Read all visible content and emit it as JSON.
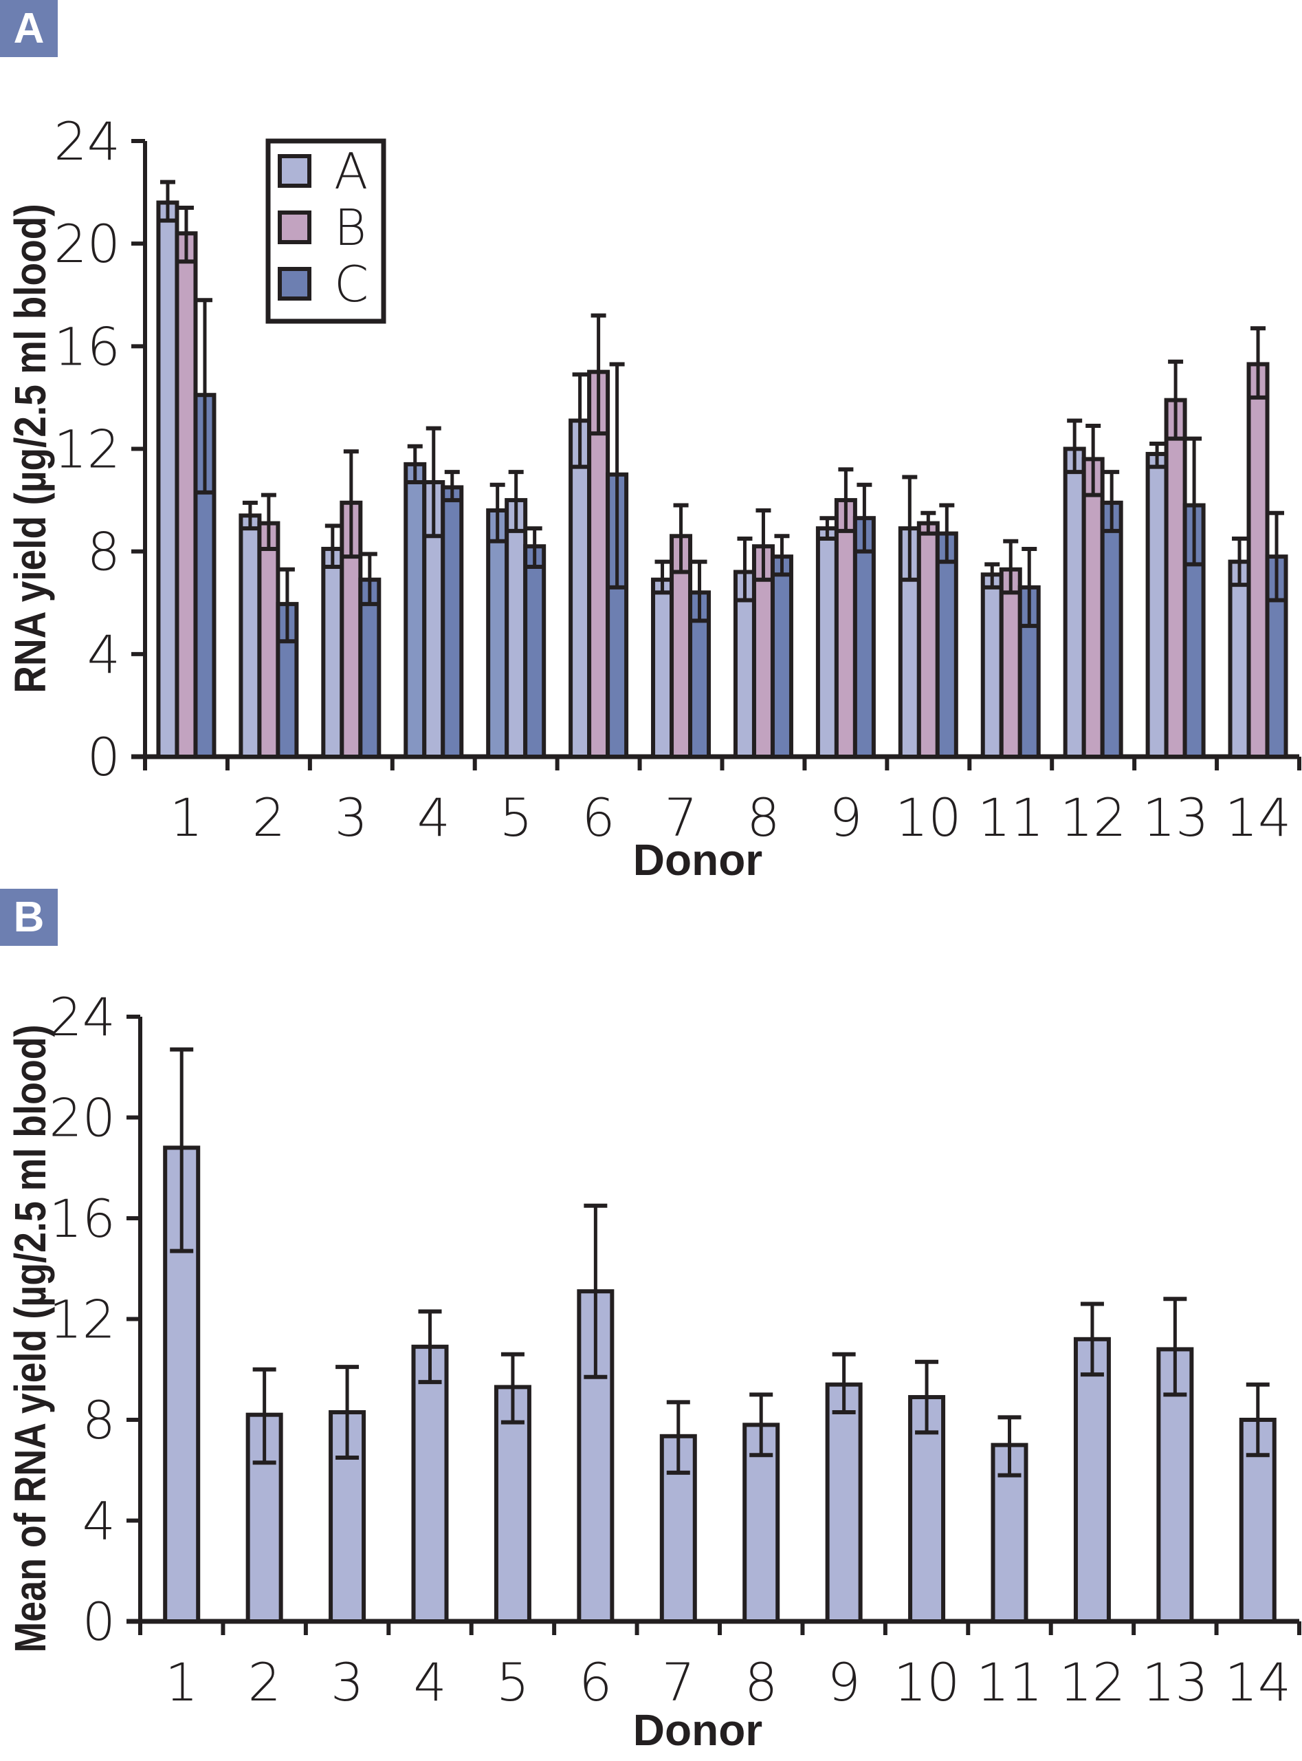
{
  "panels": [
    {
      "badge": "A"
    },
    {
      "badge": "B"
    }
  ],
  "colors": {
    "A": "#aeb4d6",
    "B": "#c2a3c0",
    "C": "#6d7fb1",
    "alt_medium": "#8596c2",
    "axis": "#231f20",
    "badge": "#6d7fb1"
  },
  "chart_data": [
    {
      "type": "bar",
      "title": "A",
      "xlabel": "Donor",
      "ylabel": "RNA yield (µg/2.5 ml blood)",
      "ylim": [
        0,
        24
      ],
      "yticks": [
        "0",
        "4",
        "8",
        "12",
        "16",
        "20",
        "24"
      ],
      "ytick_values": [
        0,
        4,
        8,
        12,
        16,
        20,
        24
      ],
      "grid": false,
      "legend": {
        "position": "top-left",
        "entries": [
          "A",
          "B",
          "C"
        ]
      },
      "categories": [
        "1",
        "2",
        "3",
        "4",
        "5",
        "6",
        "7",
        "8",
        "9",
        "10",
        "11",
        "12",
        "13",
        "14"
      ],
      "series": [
        {
          "name": "A",
          "values": [
            21.6,
            9.4,
            8.1,
            11.4,
            9.6,
            13.1,
            6.9,
            7.2,
            8.9,
            8.9,
            7.1,
            12.0,
            11.8,
            7.6
          ],
          "err_high": [
            22.4,
            9.9,
            9.0,
            12.1,
            10.6,
            14.9,
            7.6,
            8.5,
            9.3,
            10.9,
            7.5,
            13.1,
            12.2,
            8.5
          ],
          "err_low": [
            20.9,
            8.9,
            7.4,
            10.7,
            8.4,
            11.3,
            6.4,
            6.1,
            8.5,
            6.9,
            6.6,
            11.1,
            11.3,
            6.7
          ]
        },
        {
          "name": "B",
          "values": [
            20.4,
            9.1,
            9.9,
            10.7,
            10.0,
            15.0,
            8.6,
            8.2,
            10.0,
            9.1,
            7.3,
            11.6,
            13.9,
            15.3
          ],
          "err_high": [
            21.4,
            10.2,
            11.9,
            12.8,
            11.1,
            17.2,
            9.8,
            9.6,
            11.2,
            9.5,
            8.4,
            12.9,
            15.4,
            16.7
          ],
          "err_low": [
            19.3,
            8.1,
            7.8,
            8.6,
            8.8,
            12.6,
            7.2,
            6.9,
            8.8,
            8.7,
            6.4,
            10.2,
            12.4,
            14.0
          ]
        },
        {
          "name": "C",
          "values": [
            14.1,
            5.95,
            6.9,
            10.5,
            8.2,
            11.0,
            6.4,
            7.8,
            9.3,
            8.7,
            6.6,
            9.9,
            9.8,
            7.8
          ],
          "err_high": [
            17.8,
            7.3,
            7.9,
            11.1,
            8.9,
            15.3,
            7.6,
            8.6,
            10.6,
            9.8,
            8.1,
            11.1,
            12.4,
            9.5
          ],
          "err_low": [
            10.3,
            4.5,
            5.95,
            10.0,
            7.4,
            6.6,
            5.3,
            7.1,
            8.0,
            7.6,
            5.1,
            8.8,
            7.5,
            6.1
          ]
        }
      ],
      "bar_color_overrides": {
        "4": [
          "alt_medium",
          "A",
          "C"
        ],
        "5": [
          "alt_medium",
          "A",
          "C"
        ]
      }
    },
    {
      "type": "bar",
      "title": "B",
      "xlabel": "Donor",
      "ylabel": "Mean of RNA yield (µg/2.5 ml blood)",
      "ylim": [
        0,
        24
      ],
      "yticks": [
        "0",
        "4",
        "8",
        "12",
        "16",
        "20",
        "24"
      ],
      "ytick_values": [
        0,
        4,
        8,
        12,
        16,
        20,
        24
      ],
      "grid": false,
      "categories": [
        "1",
        "2",
        "3",
        "4",
        "5",
        "6",
        "7",
        "8",
        "9",
        "10",
        "11",
        "12",
        "13",
        "14"
      ],
      "series": [
        {
          "name": "Mean",
          "values": [
            18.8,
            8.2,
            8.3,
            10.9,
            9.3,
            13.1,
            7.35,
            7.8,
            9.4,
            8.9,
            7.0,
            11.2,
            10.8,
            8.0
          ],
          "err_high": [
            22.7,
            10.0,
            10.1,
            12.3,
            10.6,
            16.5,
            8.7,
            9.0,
            10.6,
            10.3,
            8.1,
            12.6,
            12.8,
            9.4
          ],
          "err_low": [
            14.7,
            6.3,
            6.5,
            9.5,
            7.9,
            9.7,
            5.9,
            6.6,
            8.3,
            7.5,
            5.8,
            9.8,
            9.0,
            6.6
          ]
        }
      ]
    }
  ]
}
